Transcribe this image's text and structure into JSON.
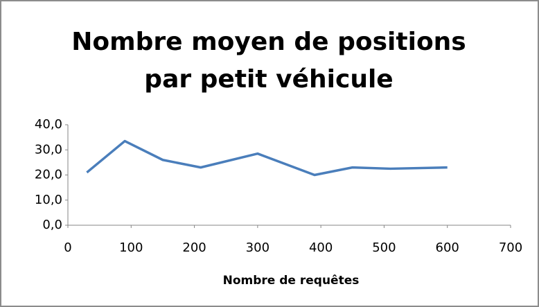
{
  "chart_data": {
    "type": "line",
    "title": [
      "Nombre moyen de positions",
      "par petit véhicule"
    ],
    "x_label": "Nombre de requêtes",
    "x": [
      30,
      90,
      150,
      210,
      300,
      390,
      450,
      510,
      600
    ],
    "series": [
      {
        "name": "Nombre moyen de positions par petit véhicule",
        "color": "#4a7ebb",
        "values": [
          21,
          33.5,
          26,
          23,
          28.5,
          20,
          23,
          22.5,
          23
        ]
      }
    ],
    "xlim": [
      0,
      700
    ],
    "xticks": [
      0,
      100,
      200,
      300,
      400,
      500,
      600,
      700
    ],
    "ylim": [
      0,
      40
    ],
    "yticks": [
      {
        "value": 0,
        "label": "0,0"
      },
      {
        "value": 10,
        "label": "10,0"
      },
      {
        "value": 20,
        "label": "20,0"
      },
      {
        "value": 30,
        "label": "30,0"
      },
      {
        "value": 40,
        "label": "40,0"
      }
    ],
    "grid": false
  }
}
